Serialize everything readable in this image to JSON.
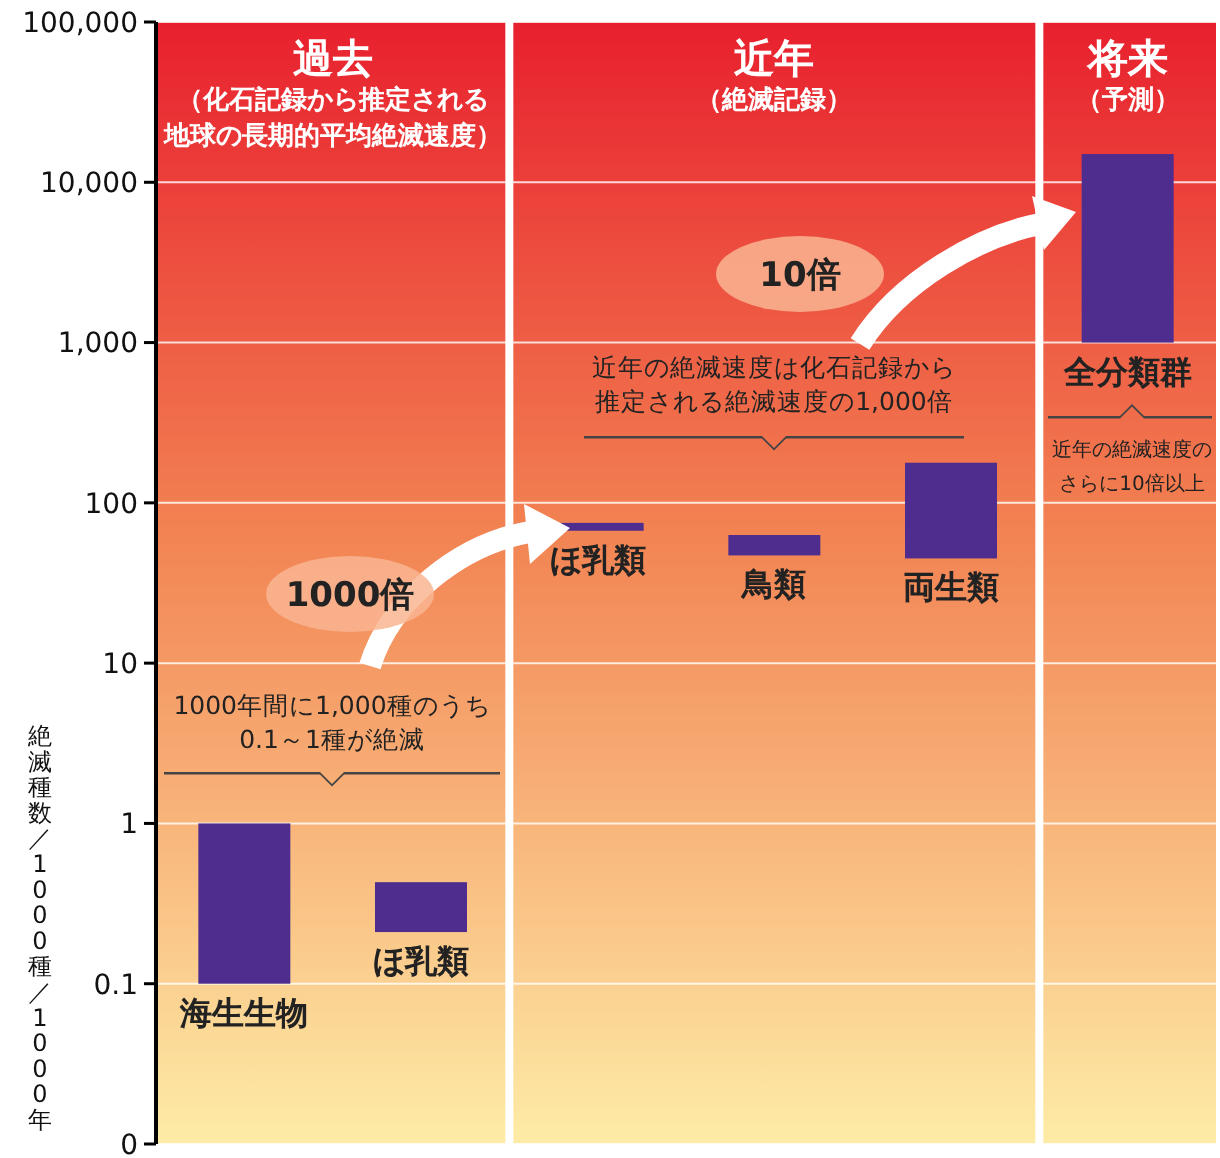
{
  "chart_data": {
    "type": "bar",
    "ylabel": "絶滅種数／1000種／1000年",
    "categories": [
      null,
      null,
      null,
      null,
      null,
      null
    ],
    "base": [
      0.1,
      0.21,
      67,
      47,
      45,
      1000
    ],
    "values": [
      0.9,
      0.22,
      8,
      16,
      133,
      14000
    ],
    "color": "#4f2d8f",
    "log": true,
    "grid": "y",
    "tick_labels": "y",
    "ylim": [
      0.01,
      100000
    ],
    "yticks": [
      {
        "value": 0.01,
        "label": "0"
      },
      0.1,
      1,
      10,
      100,
      {
        "value": 1000,
        "label": "1,000"
      },
      {
        "value": 10000,
        "label": "10,000"
      },
      {
        "value": 100000,
        "label": "100,000"
      }
    ],
    "annotations": [
      "過去",
      "（化石記録から推定される地球の長期的平均絶滅速度）",
      "近年",
      "（絶滅記録）",
      "将来",
      "（予測）",
      "海生生物",
      "ほ乳類",
      "ほ乳類",
      "鳥類",
      "両生類",
      "全分類群",
      "1000倍",
      "10倍",
      "1000年間に1,000種のうち0.1～1種が絶滅",
      "近年の絶滅速度は化石記録から推定される絶滅速度の1,000倍",
      "近年の絶滅速度のさらに10倍以上"
    ]
  }
}
